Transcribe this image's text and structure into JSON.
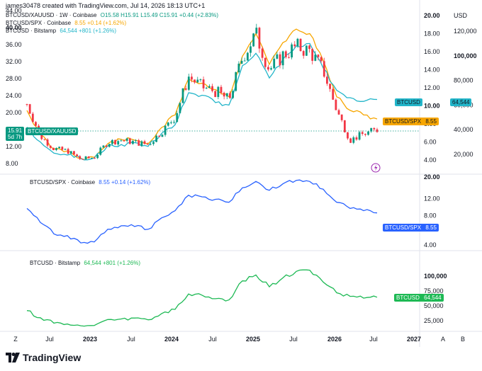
{
  "header": {
    "created_by": "james30478 created with TradingView.com, Jul 14, 2026 18:13 UTC+1"
  },
  "legend": {
    "main": [
      {
        "name": "BTCUSD/XAUUSD · 1W · Coinbase",
        "values": "O15.58  H15.91  L15.49  C15.91  +0.44 (+2.83%)",
        "color": "#089981"
      },
      {
        "name": "BTCUSD/SPX · Coinbase",
        "values": "8.55  +0.14 (+1.62%)",
        "color": "#f7a600"
      },
      {
        "name": "BTCUSD · Bitstamp",
        "values": "64,544  +801 (+1.26%)",
        "color": "#22b5c9"
      }
    ],
    "pane2": {
      "name": "BTCUSD/SPX · Coinbase",
      "values": "8.55  +0.14 (+1.62%)",
      "color": "#2962ff"
    },
    "pane3": {
      "name": "BTCUSD · Bitstamp",
      "values": "64,544  +801 (+1.26%)",
      "color": "#1db954"
    }
  },
  "badges": {
    "xau_price": "15.91",
    "xau_countdown": "5d 7h",
    "xau_label": "BTCUSD/XAUUSD",
    "btc_label": "BTCUSD",
    "btc_value": "64,544",
    "spx_label": "BTCUSD/SPX",
    "spx_value": "8.55",
    "pane2_label": "BTCUSD/SPX",
    "pane2_value": "8.55",
    "pane3_label": "BTCUSD",
    "pane3_value": "64,544"
  },
  "axes": {
    "left_ticks": [
      "44.00",
      "40.00",
      "36.00",
      "32.00",
      "28.00",
      "24.00",
      "20.00",
      "16.00",
      "12.00",
      "8.00"
    ],
    "mid_ticks": [
      "20.00",
      "18.00",
      "16.00",
      "14.00",
      "12.00",
      "10.00",
      "8.00",
      "6.00",
      "4.00"
    ],
    "right_ticks": [
      "USD",
      "120,000",
      "100,000",
      "80,000",
      "60,000",
      "40,000",
      "20,000"
    ],
    "pane2_ticks": [
      "20.00",
      "12.00",
      "8.00",
      "4.00"
    ],
    "pane3_ticks": [
      "100,000",
      "75,000",
      "50,000",
      "25,000"
    ],
    "x_ticks": [
      "Z",
      "Jul",
      "2023",
      "Jul",
      "2024",
      "Jul",
      "2025",
      "Jul",
      "2026",
      "Jul",
      "2027",
      "A",
      "B"
    ]
  },
  "footer": {
    "brand": "TradingView"
  },
  "chart_data": [
    {
      "type": "line",
      "pane": "main",
      "x": [
        "2022-03",
        "2022-05",
        "2022-07",
        "2022-09",
        "2022-11",
        "2023-01",
        "2023-03",
        "2023-05",
        "2023-07",
        "2023-09",
        "2023-11",
        "2024-01",
        "2024-03",
        "2024-05",
        "2024-07",
        "2024-09",
        "2024-11",
        "2025-01",
        "2025-03",
        "2025-05",
        "2025-07",
        "2025-09",
        "2025-11",
        "2026-01",
        "2026-03",
        "2026-05",
        "2026-07"
      ],
      "series": [
        {
          "name": "BTCUSD/XAUUSD",
          "axis": "left",
          "values": [
            22.0,
            14.5,
            11.5,
            11.0,
            9.0,
            9.5,
            13.0,
            13.5,
            13.0,
            12.5,
            15.5,
            19.0,
            28.5,
            26.0,
            25.0,
            23.0,
            33.0,
            38.5,
            30.0,
            33.5,
            35.5,
            34.5,
            30.0,
            20.5,
            13.5,
            15.0,
            15.91
          ]
        },
        {
          "name": "BTCUSD/SPX",
          "axis": "middle",
          "values": [
            9.5,
            6.8,
            5.2,
            5.0,
            4.2,
            4.3,
            5.8,
            6.3,
            6.2,
            5.8,
            7.6,
            9.0,
            13.0,
            12.5,
            11.8,
            11.0,
            15.5,
            18.0,
            14.6,
            17.0,
            18.5,
            18.0,
            15.0,
            11.0,
            9.5,
            9.0,
            8.55
          ]
        },
        {
          "name": "BTCUSD",
          "axis": "right",
          "values": [
            42000,
            30000,
            21000,
            19500,
            16500,
            17000,
            27000,
            28000,
            29500,
            26500,
            37000,
            44000,
            70000,
            68000,
            62000,
            60000,
            92000,
            102000,
            82000,
            97000,
            108000,
            110000,
            90000,
            72000,
            66000,
            63000,
            64544
          ]
        }
      ],
      "left_ylim": [
        6,
        44
      ],
      "middle_ylim": [
        2.5,
        20
      ],
      "right_ylim": [
        0,
        130000
      ]
    },
    {
      "type": "line",
      "pane": "middle",
      "series": [
        {
          "name": "BTCUSD/SPX · Coinbase",
          "values": [
            9.5,
            6.8,
            5.2,
            5.0,
            4.2,
            4.3,
            5.8,
            6.3,
            6.2,
            5.8,
            7.6,
            9.0,
            13.0,
            12.5,
            11.8,
            11.0,
            15.5,
            18.0,
            14.6,
            17.0,
            18.5,
            18.0,
            15.0,
            11.0,
            9.5,
            9.0,
            8.55
          ]
        }
      ],
      "ylim": [
        3,
        22
      ]
    },
    {
      "type": "line",
      "pane": "bottom",
      "series": [
        {
          "name": "BTCUSD · Bitstamp",
          "values": [
            42000,
            30000,
            21000,
            19500,
            16500,
            17000,
            27000,
            28000,
            29500,
            26500,
            37000,
            44000,
            70000,
            68000,
            62000,
            60000,
            92000,
            102000,
            82000,
            97000,
            108000,
            110000,
            90000,
            72000,
            66000,
            63000,
            64544
          ]
        }
      ],
      "ylim": [
        10000,
        125000
      ]
    }
  ]
}
